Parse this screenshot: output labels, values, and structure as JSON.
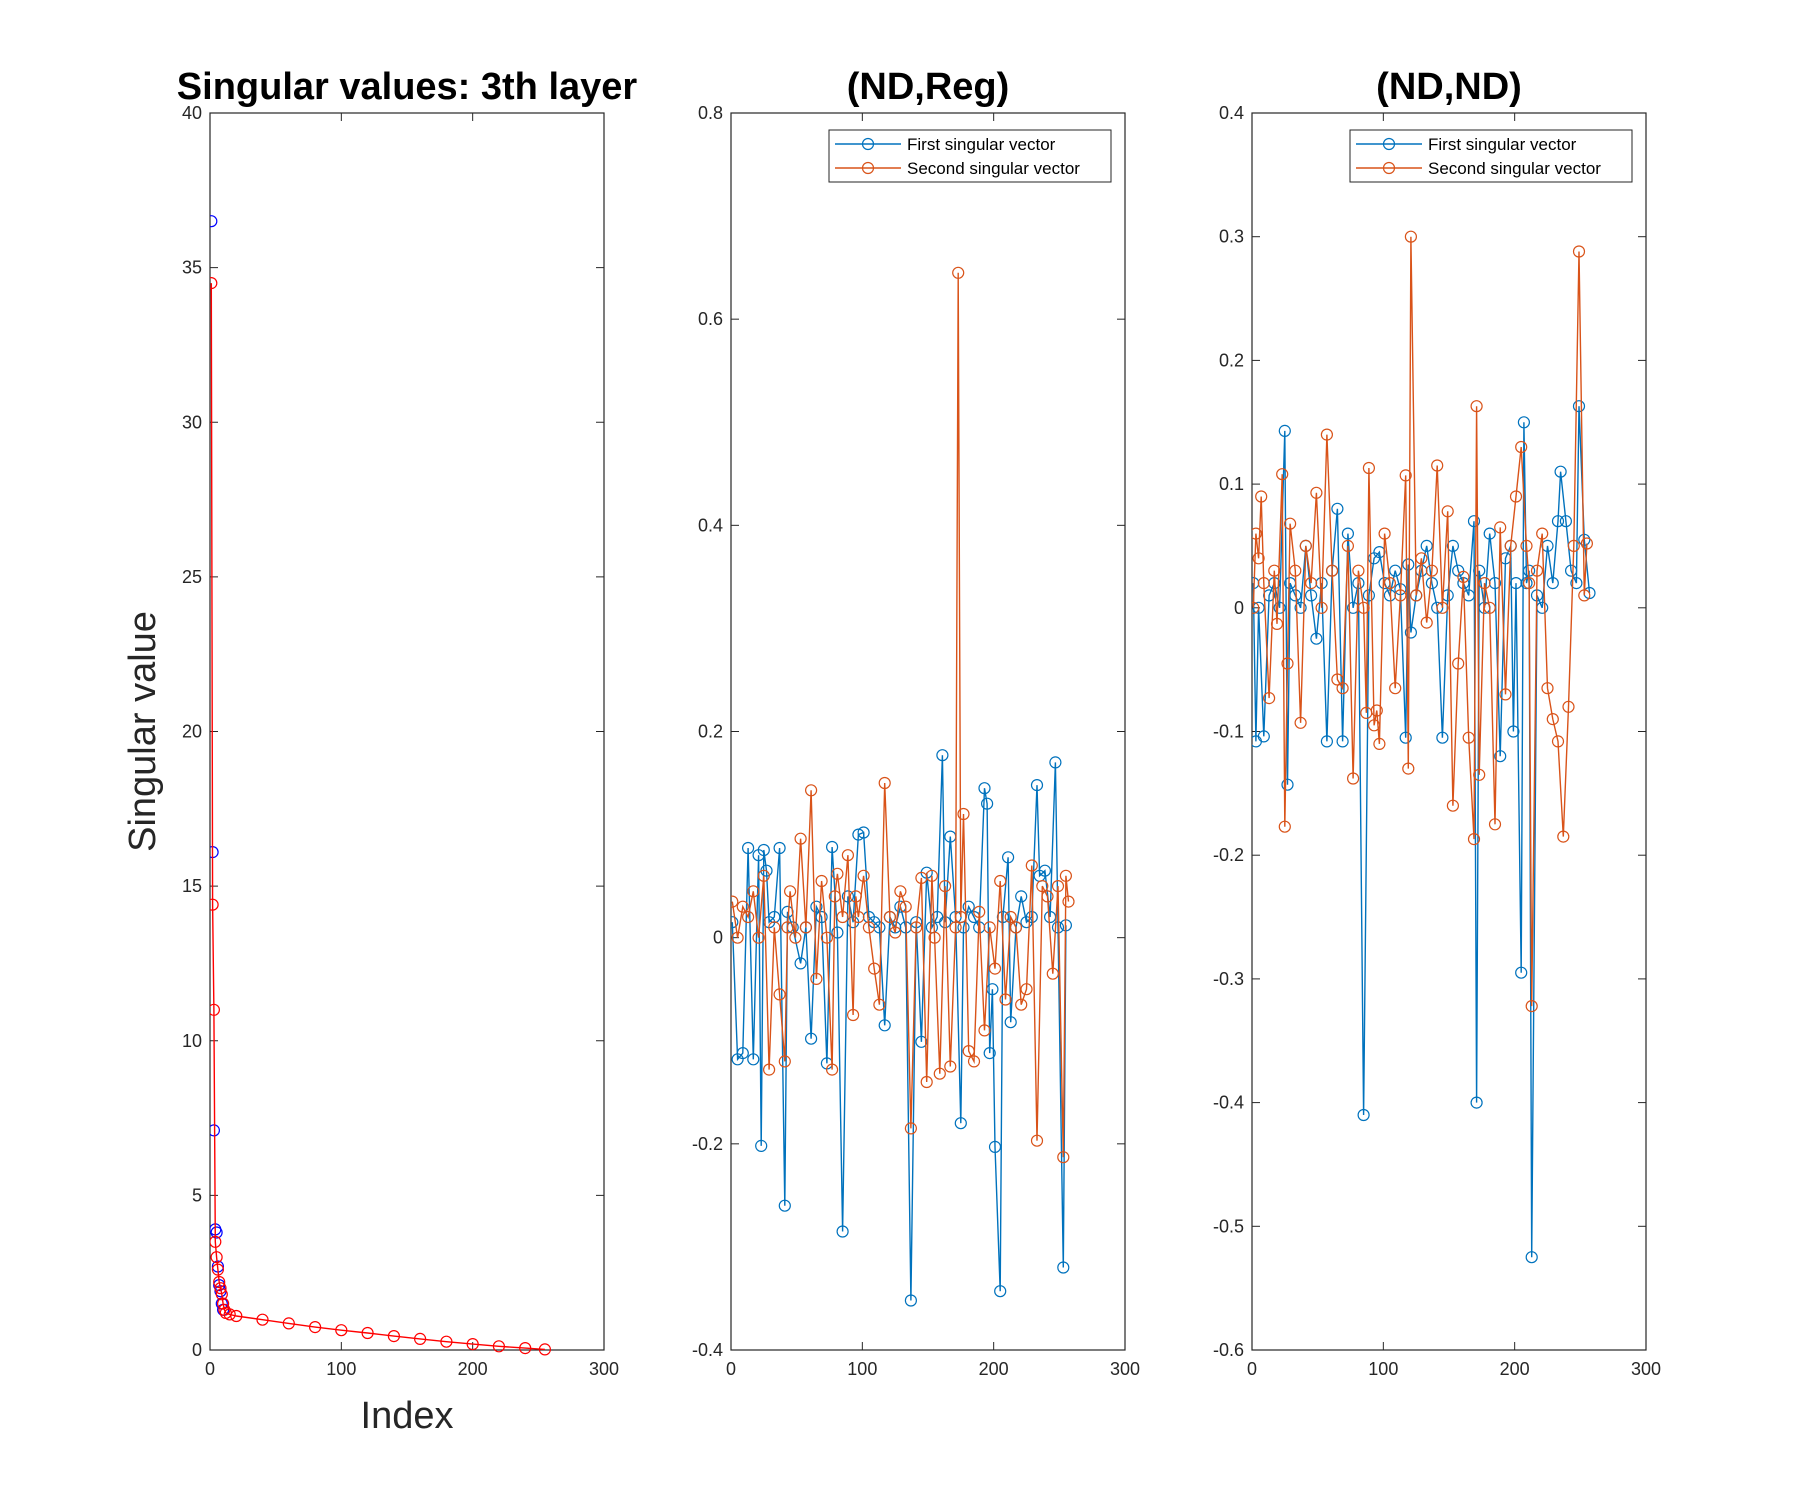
{
  "chart_data": [
    {
      "type": "scatter",
      "title": "Singular values: 3th layer",
      "xlabel": "Index",
      "ylabel": "Singular value",
      "xlim": [
        0,
        300
      ],
      "ylim": [
        0,
        40
      ],
      "xticks": [
        "0",
        "100",
        "200",
        "300"
      ],
      "yticks": [
        "0",
        "5",
        "10",
        "15",
        "20",
        "25",
        "30",
        "35",
        "40"
      ],
      "grid": false,
      "series": [
        {
          "color": "#0000ff",
          "marker": "circle",
          "line": false,
          "points": [
            [
              1,
              36.5
            ],
            [
              2,
              16.1
            ],
            [
              3,
              7.1
            ],
            [
              4,
              3.9
            ],
            [
              5,
              3.8
            ],
            [
              6,
              2.7
            ],
            [
              7,
              2.1
            ],
            [
              8,
              1.9
            ],
            [
              9,
              1.5
            ],
            [
              10,
              1.3
            ]
          ]
        },
        {
          "color": "#ff0000",
          "marker": "circle",
          "line": true,
          "points": [
            [
              1,
              34.5
            ],
            [
              2,
              14.4
            ],
            [
              3,
              11.0
            ],
            [
              4,
              3.5
            ],
            [
              5,
              3.0
            ],
            [
              6,
              2.6
            ],
            [
              7,
              2.2
            ],
            [
              8,
              2.0
            ],
            [
              9,
              1.8
            ],
            [
              10,
              1.5
            ],
            [
              11,
              1.3
            ],
            [
              12,
              1.2
            ],
            [
              15,
              1.15
            ],
            [
              20,
              1.1
            ],
            [
              40,
              0.98
            ],
            [
              60,
              0.86
            ],
            [
              80,
              0.74
            ],
            [
              100,
              0.64
            ],
            [
              120,
              0.55
            ],
            [
              140,
              0.45
            ],
            [
              160,
              0.36
            ],
            [
              180,
              0.27
            ],
            [
              200,
              0.19
            ],
            [
              220,
              0.12
            ],
            [
              240,
              0.06
            ],
            [
              255,
              0.02
            ]
          ]
        }
      ]
    },
    {
      "type": "line",
      "title": "(ND,Reg)",
      "xlabel": "",
      "ylabel": "",
      "xlim": [
        0,
        300
      ],
      "ylim": [
        -0.4,
        0.8
      ],
      "xticks": [
        "0",
        "100",
        "200",
        "300"
      ],
      "yticks": [
        "-0.4",
        "-0.2",
        "0",
        "0.2",
        "0.4",
        "0.6",
        "0.8"
      ],
      "legend": "top-right",
      "grid": false,
      "series": [
        {
          "name": "First singular vector",
          "color": "#0072bd",
          "marker": "circle",
          "x": [
            1,
            5,
            9,
            13,
            17,
            21,
            23,
            25,
            27,
            29,
            33,
            37,
            41,
            43,
            47,
            53,
            57,
            61,
            65,
            69,
            73,
            77,
            81,
            85,
            89,
            93,
            97,
            101,
            105,
            109,
            113,
            117,
            121,
            125,
            129,
            133,
            137,
            141,
            145,
            149,
            153,
            157,
            161,
            163,
            167,
            171,
            175,
            177,
            181,
            185,
            189,
            193,
            195,
            197,
            199,
            201,
            205,
            207,
            211,
            213,
            217,
            221,
            225,
            229,
            233,
            235,
            239,
            243,
            247,
            249,
            253,
            255
          ],
          "y": [
            0.015,
            -0.118,
            -0.112,
            0.087,
            -0.118,
            0.08,
            -0.202,
            0.085,
            0.065,
            0.015,
            0.02,
            0.087,
            -0.26,
            0.025,
            0.01,
            -0.025,
            0.01,
            -0.098,
            0.03,
            0.02,
            -0.122,
            0.088,
            0.005,
            -0.285,
            0.04,
            0.015,
            0.1,
            0.102,
            0.02,
            0.015,
            0.01,
            -0.085,
            0.02,
            0.01,
            0.03,
            0.01,
            -0.352,
            0.015,
            -0.101,
            0.063,
            0.01,
            0.02,
            0.177,
            0.015,
            0.098,
            0.02,
            -0.18,
            0.01,
            0.03,
            0.02,
            0.01,
            0.145,
            0.13,
            -0.112,
            -0.05,
            -0.203,
            -0.343,
            0.02,
            0.078,
            -0.082,
            0.01,
            0.04,
            0.015,
            0.02,
            0.148,
            0.06,
            0.065,
            0.02,
            0.17,
            0.01,
            -0.32,
            0.012
          ]
        },
        {
          "name": "Second singular vector",
          "color": "#d95319",
          "marker": "circle",
          "x": [
            1,
            5,
            9,
            13,
            17,
            21,
            25,
            29,
            33,
            37,
            41,
            43,
            45,
            49,
            53,
            57,
            61,
            65,
            69,
            73,
            77,
            79,
            81,
            85,
            89,
            93,
            95,
            97,
            101,
            105,
            109,
            113,
            117,
            121,
            125,
            129,
            133,
            137,
            141,
            145,
            149,
            153,
            155,
            159,
            163,
            167,
            171,
            173,
            175,
            177,
            181,
            185,
            189,
            193,
            197,
            201,
            205,
            209,
            213,
            217,
            221,
            225,
            229,
            233,
            237,
            241,
            245,
            249,
            253,
            255,
            257
          ],
          "y": [
            0.035,
            0.0,
            0.03,
            0.02,
            0.045,
            0.0,
            0.06,
            -0.128,
            0.01,
            -0.055,
            -0.12,
            0.01,
            0.045,
            0.0,
            0.096,
            0.01,
            0.143,
            -0.04,
            0.055,
            0.0,
            -0.128,
            0.04,
            0.062,
            0.02,
            0.08,
            -0.075,
            0.04,
            0.02,
            0.06,
            0.01,
            -0.03,
            -0.065,
            0.15,
            0.02,
            0.005,
            0.045,
            0.03,
            -0.185,
            0.01,
            0.058,
            -0.14,
            0.06,
            0.0,
            -0.132,
            0.05,
            -0.125,
            0.01,
            0.645,
            0.02,
            0.12,
            -0.11,
            -0.12,
            0.025,
            -0.09,
            0.01,
            -0.03,
            0.055,
            -0.06,
            0.02,
            0.01,
            -0.065,
            -0.05,
            0.07,
            -0.197,
            0.05,
            0.04,
            -0.035,
            0.05,
            -0.213,
            0.06,
            0.035
          ]
        }
      ]
    },
    {
      "type": "line",
      "title": "(ND,ND)",
      "xlabel": "",
      "ylabel": "",
      "xlim": [
        0,
        300
      ],
      "ylim": [
        -0.6,
        0.4
      ],
      "xticks": [
        "0",
        "100",
        "200",
        "300"
      ],
      "yticks": [
        "-0.6",
        "-0.5",
        "-0.4",
        "-0.3",
        "-0.2",
        "-0.1",
        "0",
        "0.1",
        "0.2",
        "0.3",
        "0.4"
      ],
      "legend": "top-right",
      "grid": false,
      "series": [
        {
          "name": "First singular vector",
          "color": "#0072bd",
          "marker": "circle",
          "x": [
            1,
            3,
            5,
            9,
            13,
            17,
            21,
            25,
            27,
            29,
            33,
            37,
            41,
            45,
            49,
            53,
            57,
            61,
            65,
            69,
            73,
            77,
            81,
            85,
            89,
            93,
            97,
            101,
            105,
            109,
            113,
            117,
            119,
            121,
            125,
            129,
            133,
            137,
            141,
            145,
            149,
            153,
            157,
            161,
            165,
            169,
            171,
            173,
            177,
            181,
            185,
            189,
            193,
            197,
            199,
            201,
            205,
            207,
            209,
            211,
            213,
            217,
            221,
            225,
            229,
            233,
            235,
            239,
            243,
            247,
            249,
            253,
            257
          ],
          "y": [
            0.02,
            -0.108,
            0.0,
            -0.104,
            0.01,
            0.02,
            0.0,
            0.143,
            -0.143,
            0.02,
            0.01,
            0.0,
            0.05,
            0.01,
            -0.025,
            0.02,
            -0.108,
            0.03,
            0.08,
            -0.108,
            0.06,
            0.0,
            0.02,
            -0.41,
            0.01,
            0.04,
            0.045,
            0.02,
            0.01,
            0.03,
            0.015,
            -0.105,
            0.035,
            -0.02,
            0.01,
            0.03,
            0.05,
            0.02,
            0.0,
            -0.105,
            0.01,
            0.05,
            0.03,
            0.02,
            0.01,
            0.07,
            -0.4,
            0.03,
            0.0,
            0.06,
            0.02,
            -0.12,
            0.04,
            0.05,
            -0.1,
            0.02,
            -0.295,
            0.15,
            0.02,
            0.03,
            -0.525,
            0.01,
            0.0,
            0.05,
            0.02,
            0.07,
            0.11,
            0.07,
            0.03,
            0.02,
            0.163,
            0.055,
            0.012
          ]
        },
        {
          "name": "Second singular vector",
          "color": "#d95319",
          "marker": "circle",
          "x": [
            1,
            3,
            5,
            7,
            9,
            13,
            17,
            19,
            23,
            25,
            27,
            29,
            33,
            37,
            41,
            45,
            49,
            53,
            57,
            61,
            65,
            69,
            73,
            77,
            81,
            85,
            87,
            89,
            93,
            95,
            97,
            101,
            105,
            109,
            113,
            117,
            119,
            121,
            125,
            129,
            133,
            137,
            141,
            145,
            149,
            153,
            157,
            161,
            165,
            169,
            171,
            173,
            177,
            181,
            185,
            189,
            193,
            197,
            201,
            205,
            209,
            211,
            213,
            217,
            221,
            225,
            229,
            233,
            237,
            241,
            245,
            249,
            253,
            255
          ],
          "y": [
            0.0,
            0.06,
            0.04,
            0.09,
            0.02,
            -0.073,
            0.03,
            -0.013,
            0.108,
            -0.177,
            -0.045,
            0.068,
            0.03,
            -0.093,
            0.05,
            0.02,
            0.093,
            0.0,
            0.14,
            0.03,
            -0.058,
            -0.065,
            0.05,
            -0.138,
            0.03,
            0.0,
            -0.085,
            0.113,
            -0.095,
            -0.083,
            -0.11,
            0.06,
            0.02,
            -0.065,
            0.01,
            0.107,
            -0.13,
            0.3,
            0.01,
            0.04,
            -0.012,
            0.03,
            0.115,
            0.0,
            0.078,
            -0.16,
            -0.045,
            0.025,
            -0.105,
            -0.187,
            0.163,
            -0.135,
            0.02,
            0.0,
            -0.175,
            0.065,
            -0.07,
            0.05,
            0.09,
            0.13,
            0.05,
            0.02,
            -0.322,
            0.03,
            0.06,
            -0.065,
            -0.09,
            -0.108,
            -0.185,
            -0.08,
            0.05,
            0.288,
            0.01,
            0.052
          ]
        }
      ]
    }
  ]
}
